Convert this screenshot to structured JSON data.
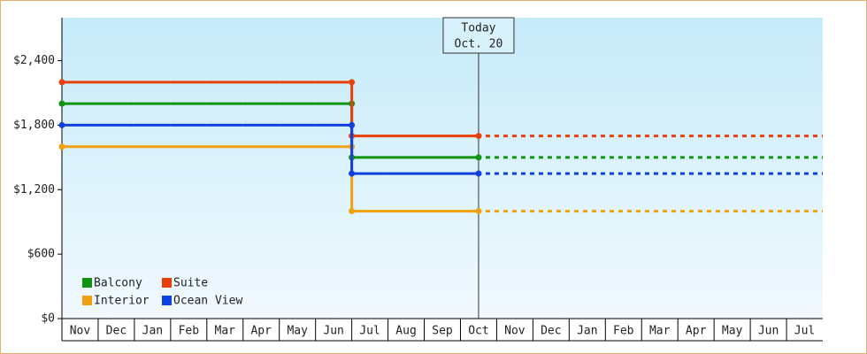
{
  "chart_data": {
    "type": "step-line",
    "categories": [
      "Nov",
      "Dec",
      "Jan",
      "Feb",
      "Mar",
      "Apr",
      "May",
      "Jun",
      "Jul",
      "Aug",
      "Sep",
      "Oct",
      "Nov",
      "Dec",
      "Jan",
      "Feb",
      "Mar",
      "Apr",
      "May",
      "Jun",
      "Jul"
    ],
    "series": [
      {
        "name": "Balcony",
        "color": "#109410",
        "values": [
          2000,
          2000,
          2000,
          2000,
          2000,
          2000,
          2000,
          2000,
          1500,
          1500,
          1500,
          1500,
          null,
          null,
          null,
          null,
          null,
          null,
          null,
          null,
          null
        ]
      },
      {
        "name": "Suite",
        "color": "#e8400c",
        "values": [
          2200,
          2200,
          2200,
          2200,
          2200,
          2200,
          2200,
          2200,
          1700,
          1700,
          1700,
          1700,
          null,
          null,
          null,
          null,
          null,
          null,
          null,
          null,
          null
        ]
      },
      {
        "name": "Interior",
        "color": "#f0a010",
        "values": [
          1600,
          1600,
          1600,
          1600,
          1600,
          1600,
          1600,
          1600,
          1000,
          1000,
          1000,
          1000,
          null,
          null,
          null,
          null,
          null,
          null,
          null,
          null,
          null
        ]
      },
      {
        "name": "Ocean View",
        "color": "#1040e0",
        "values": [
          1800,
          1800,
          1800,
          1800,
          1800,
          1800,
          1800,
          1800,
          1350,
          1350,
          1350,
          1350,
          null,
          null,
          null,
          null,
          null,
          null,
          null,
          null,
          null
        ]
      }
    ],
    "annotation": [
      "Today",
      "Oct. 20"
    ],
    "ylim": [
      0,
      2800
    ],
    "yticks": [
      {
        "value": 0,
        "label": "$0"
      },
      {
        "value": 600,
        "label": "$600"
      },
      {
        "value": 1200,
        "label": "$1,200"
      },
      {
        "value": 1800,
        "label": "$1,800"
      },
      {
        "value": 2400,
        "label": "$2,400"
      }
    ],
    "future_dashed": true
  }
}
